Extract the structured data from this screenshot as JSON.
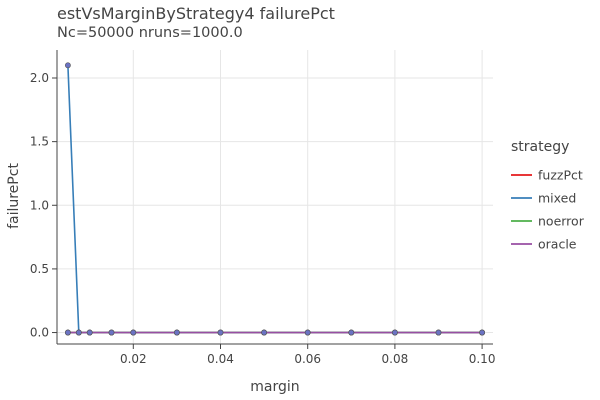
{
  "chart_data": {
    "type": "line",
    "title": "estVsMarginByStrategy4 failurePct",
    "subtitle": "Nc=50000 nruns=1000.0",
    "xlabel": "margin",
    "ylabel": "failurePct",
    "xlim": [
      0.0025,
      0.1025
    ],
    "ylim": [
      -0.09,
      2.22
    ],
    "x_ticks": [
      0.02,
      0.04,
      0.06,
      0.08,
      0.1
    ],
    "x_tick_labels": [
      "0.02",
      "0.04",
      "0.06",
      "0.08",
      "0.10"
    ],
    "y_ticks": [
      0,
      0.5,
      1,
      1.5,
      2
    ],
    "y_tick_labels": [
      "0.0",
      "0.5",
      "1.0",
      "1.5",
      "2.0"
    ],
    "grid": true,
    "legend_title": "strategy",
    "legend_position": "right",
    "x": [
      0.005,
      0.0075,
      0.01,
      0.015,
      0.02,
      0.03,
      0.04,
      0.05,
      0.06,
      0.07,
      0.08,
      0.09,
      0.1
    ],
    "series": [
      {
        "name": "fuzzPct",
        "color": "#e41a1c",
        "values": [
          0,
          0,
          0,
          0,
          0,
          0,
          0,
          0,
          0,
          0,
          0,
          0,
          0
        ]
      },
      {
        "name": "mixed",
        "color": "#377eb8",
        "values": [
          2.1,
          0,
          0,
          0,
          0,
          0,
          0,
          0,
          0,
          0,
          0,
          0,
          0
        ]
      },
      {
        "name": "noerror",
        "color": "#4daf4a",
        "values": [
          0,
          0,
          0,
          0,
          0,
          0,
          0,
          0,
          0,
          0,
          0,
          0,
          0
        ]
      },
      {
        "name": "oracle",
        "color": "#984ea3",
        "values": [
          0,
          0,
          0,
          0,
          0,
          0,
          0,
          0,
          0,
          0,
          0,
          0,
          0
        ]
      }
    ],
    "marker_color": "#6b73c4"
  }
}
